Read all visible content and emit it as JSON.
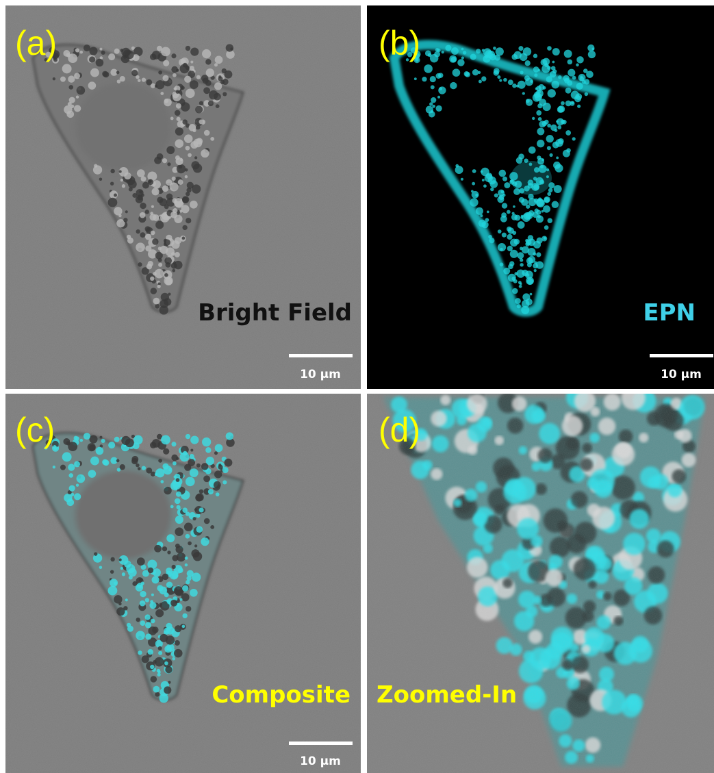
{
  "panels": [
    {
      "label": "(a)",
      "caption": "Bright Field",
      "scale_bar": "10 µm"
    },
    {
      "label": "(b)",
      "caption": "EPN",
      "scale_bar": "10 µm"
    },
    {
      "label": "(c)",
      "caption": "Composite",
      "scale_bar": "10 µm"
    },
    {
      "label": "(d)",
      "caption": "Zoomed-In"
    }
  ]
}
